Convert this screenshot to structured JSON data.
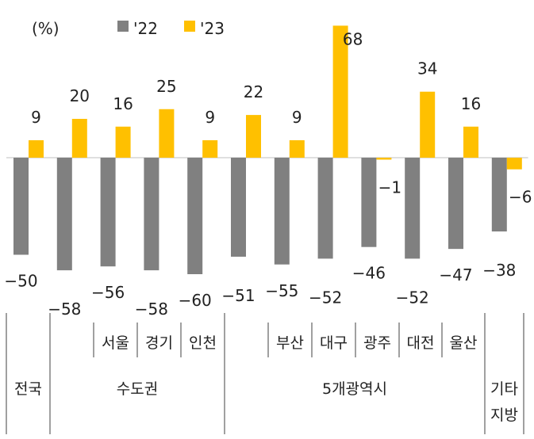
{
  "chart_data": {
    "type": "bar",
    "unit_label": "(%)",
    "legend_position": "top",
    "series": [
      {
        "name": "'22",
        "color": "#808080",
        "values": [
          -50,
          -58,
          -56,
          -58,
          -60,
          -51,
          -55,
          -52,
          -46,
          -52,
          -47,
          -38
        ]
      },
      {
        "name": "'23",
        "color": "#FFC000",
        "values": [
          9,
          20,
          16,
          25,
          9,
          22,
          9,
          68,
          -1,
          34,
          16,
          -6
        ]
      }
    ],
    "categories": [
      "전국",
      "수도권",
      "서울",
      "경기",
      "인천",
      "5개광역시",
      "부산",
      "대구",
      "광주",
      "대전",
      "울산",
      "기타 지방"
    ],
    "groups": [
      {
        "label": "전국",
        "members": [
          0
        ]
      },
      {
        "label": "수도권",
        "members": [
          1,
          2,
          3,
          4
        ],
        "sublabels": [
          "",
          "서울",
          "경기",
          "인천"
        ]
      },
      {
        "label": "5개광역시",
        "members": [
          5,
          6,
          7,
          8,
          9,
          10
        ],
        "sublabels": [
          "",
          "부산",
          "대구",
          "광주",
          "대전",
          "울산"
        ]
      },
      {
        "label": [
          "기타",
          "지방"
        ],
        "members": [
          11
        ]
      }
    ],
    "grid": false
  }
}
